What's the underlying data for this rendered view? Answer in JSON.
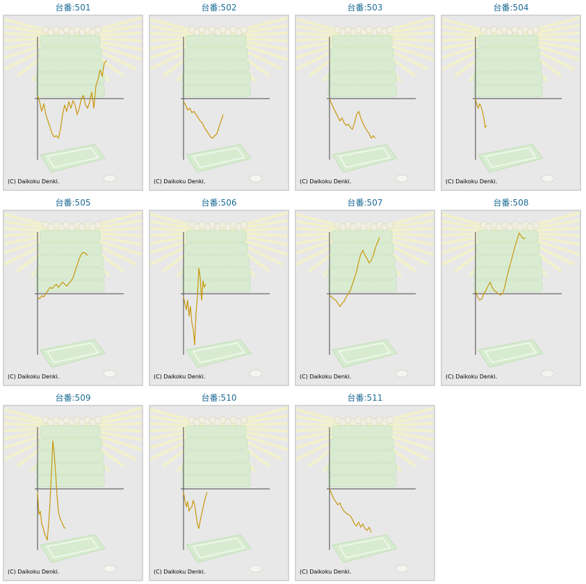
{
  "copyright": "(C) Daikoku Denki.",
  "colors": {
    "line": "#c8960a",
    "axis": "#444444",
    "title": "#1a6b95",
    "panel": "#e8e8e8"
  },
  "chart_data": [
    {
      "type": "line",
      "title": "台番:501",
      "ylim": [
        -100,
        100
      ],
      "x": [
        0,
        3,
        6,
        9,
        12,
        15,
        18,
        21,
        24,
        27,
        30,
        33,
        36,
        39,
        42,
        45,
        48,
        51,
        54,
        57,
        60,
        63,
        66,
        69,
        72,
        75,
        78,
        81,
        84,
        87,
        90,
        93,
        96,
        99
      ],
      "y": [
        5,
        -5,
        -20,
        -8,
        -25,
        -35,
        -45,
        -55,
        -60,
        -58,
        -62,
        -48,
        -25,
        -10,
        -20,
        -5,
        -15,
        -3,
        -10,
        -25,
        -15,
        0,
        5,
        -10,
        -15,
        -5,
        10,
        -15,
        20,
        30,
        45,
        35,
        55,
        60
      ]
    },
    {
      "type": "line",
      "title": "台番:502",
      "ylim": [
        -100,
        100
      ],
      "x": [
        0,
        3,
        6,
        9,
        12,
        15,
        18,
        21,
        24,
        27,
        30,
        33,
        36,
        39,
        42,
        45,
        48,
        51,
        54,
        57
      ],
      "y": [
        -5,
        -10,
        -18,
        -15,
        -22,
        -20,
        -25,
        -30,
        -35,
        -38,
        -45,
        -50,
        -55,
        -60,
        -62,
        -58,
        -55,
        -45,
        -35,
        -25
      ]
    },
    {
      "type": "line",
      "title": "台番:503",
      "ylim": [
        -100,
        100
      ],
      "x": [
        0,
        3,
        6,
        9,
        12,
        15,
        18,
        21,
        24,
        27,
        30,
        33,
        36,
        39,
        42,
        45,
        48,
        51,
        54,
        57,
        60,
        63,
        66
      ],
      "y": [
        0,
        -8,
        -15,
        -22,
        -28,
        -35,
        -30,
        -38,
        -42,
        -40,
        -45,
        -48,
        -38,
        -25,
        -20,
        -30,
        -38,
        -45,
        -50,
        -55,
        -62,
        -58,
        -62
      ]
    },
    {
      "type": "line",
      "title": "台番:504",
      "ylim": [
        -100,
        100
      ],
      "x": [
        0,
        2,
        4,
        6,
        8,
        10,
        12,
        14,
        16
      ],
      "y": [
        0,
        -10,
        -15,
        -8,
        -12,
        -20,
        -30,
        -45,
        -42
      ]
    },
    {
      "type": "line",
      "title": "台番:505",
      "ylim": [
        -100,
        100
      ],
      "x": [
        0,
        3,
        6,
        9,
        12,
        15,
        18,
        21,
        24,
        27,
        30,
        33,
        36,
        39,
        42,
        45,
        48,
        51,
        54,
        57,
        60,
        63,
        66,
        69,
        72
      ],
      "y": [
        -5,
        -8,
        -3,
        -5,
        0,
        5,
        10,
        8,
        12,
        15,
        10,
        14,
        18,
        15,
        12,
        16,
        20,
        25,
        35,
        45,
        55,
        62,
        65,
        63,
        60
      ]
    },
    {
      "type": "line",
      "title": "台番:506",
      "ylim": [
        -100,
        100
      ],
      "x": [
        0,
        2,
        4,
        6,
        8,
        10,
        12,
        14,
        16,
        18,
        20,
        22,
        24,
        26,
        28,
        30,
        32
      ],
      "y": [
        -5,
        -15,
        -25,
        -10,
        -35,
        -20,
        -45,
        -55,
        -80,
        -30,
        -5,
        40,
        25,
        -10,
        20,
        10,
        15
      ]
    },
    {
      "type": "line",
      "title": "台番:507",
      "ylim": [
        -100,
        100
      ],
      "x": [
        0,
        3,
        6,
        9,
        12,
        15,
        18,
        21,
        24,
        27,
        30,
        33,
        36,
        39,
        42,
        45,
        48,
        51,
        54,
        57,
        60,
        63,
        66,
        69,
        72
      ],
      "y": [
        -2,
        -5,
        -8,
        -10,
        -15,
        -20,
        -15,
        -12,
        -5,
        0,
        5,
        15,
        25,
        35,
        50,
        62,
        68,
        60,
        55,
        48,
        52,
        60,
        72,
        80,
        88
      ]
    },
    {
      "type": "line",
      "title": "台番:508",
      "ylim": [
        -100,
        100
      ],
      "x": [
        0,
        3,
        6,
        9,
        12,
        15,
        18,
        21,
        24,
        27,
        30,
        33,
        36,
        39,
        42,
        45,
        48,
        51,
        54,
        57,
        60,
        63,
        66,
        69,
        72
      ],
      "y": [
        5,
        -5,
        -10,
        -8,
        0,
        5,
        12,
        18,
        10,
        5,
        3,
        0,
        -2,
        0,
        10,
        25,
        38,
        50,
        62,
        75,
        85,
        95,
        90,
        86,
        88
      ]
    },
    {
      "type": "line",
      "title": "台番:509",
      "ylim": [
        -100,
        100
      ],
      "x": [
        0,
        2,
        4,
        6,
        8,
        10,
        12,
        14,
        16,
        18,
        20,
        22,
        24,
        26,
        28,
        30,
        32,
        34,
        36,
        38,
        40
      ],
      "y": [
        -5,
        -40,
        -35,
        -55,
        -60,
        -70,
        -75,
        -80,
        -55,
        -20,
        25,
        75,
        55,
        25,
        -10,
        -35,
        -45,
        -50,
        -55,
        -60,
        -62
      ]
    },
    {
      "type": "line",
      "title": "台番:510",
      "ylim": [
        -100,
        100
      ],
      "x": [
        0,
        2,
        4,
        6,
        8,
        10,
        12,
        14,
        16,
        18,
        20,
        22,
        24,
        26,
        28,
        30,
        32,
        34
      ],
      "y": [
        -5,
        -18,
        -28,
        -20,
        -35,
        -30,
        -28,
        -18,
        -25,
        -40,
        -55,
        -62,
        -50,
        -40,
        -30,
        -20,
        -12,
        -5
      ]
    },
    {
      "type": "line",
      "title": "台番:511",
      "ylim": [
        -100,
        100
      ],
      "x": [
        0,
        3,
        6,
        9,
        12,
        15,
        18,
        21,
        24,
        27,
        30,
        33,
        36,
        39,
        42,
        45,
        48,
        51,
        54,
        57,
        60
      ],
      "y": [
        0,
        -8,
        -15,
        -20,
        -25,
        -22,
        -30,
        -35,
        -38,
        -40,
        -42,
        -48,
        -55,
        -58,
        -52,
        -60,
        -55,
        -62,
        -65,
        -60,
        -68
      ]
    }
  ]
}
